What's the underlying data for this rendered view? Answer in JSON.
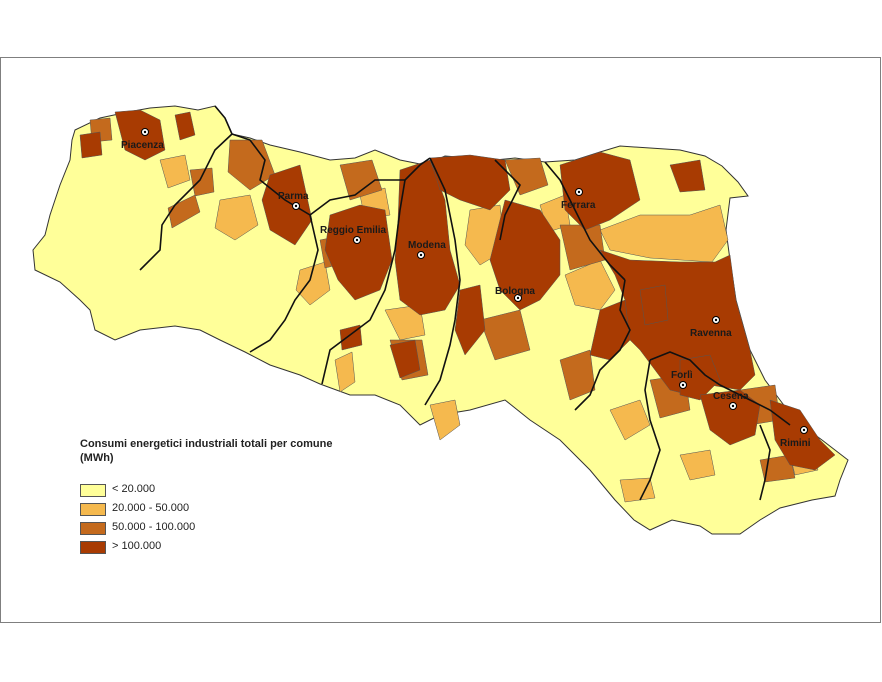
{
  "map": {
    "legend": {
      "title": "Consumi energetici industriali totali per comune (MWh)",
      "classes": [
        {
          "label": "< 20.000",
          "color": "#ffff99"
        },
        {
          "label": "20.000 - 50.000",
          "color": "#f5b94e"
        },
        {
          "label": "50.000 - 100.000",
          "color": "#c46a1d"
        },
        {
          "label": "> 100.000",
          "color": "#a83b02"
        }
      ]
    },
    "cities": [
      {
        "name": "Piacenza"
      },
      {
        "name": "Parma"
      },
      {
        "name": "Reggio Emilia"
      },
      {
        "name": "Modena"
      },
      {
        "name": "Ferrara"
      },
      {
        "name": "Bologna"
      },
      {
        "name": "Ravenna"
      },
      {
        "name": "Forlì"
      },
      {
        "name": "Cesena"
      },
      {
        "name": "Rimini"
      }
    ]
  }
}
